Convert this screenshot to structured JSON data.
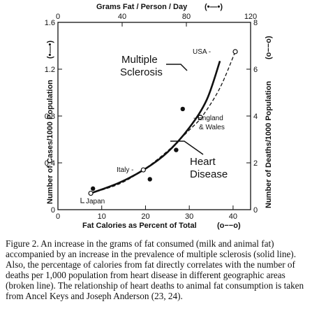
{
  "chart_data": {
    "type": "scatter",
    "title": "",
    "top_axis": {
      "label": "Grams Fat / Person / Day",
      "ticks": [
        0,
        40,
        80,
        120
      ],
      "range": [
        0,
        120
      ]
    },
    "xlabel": "Fat Calories as Percent of Total",
    "x_ticks": [
      0,
      10,
      20,
      30,
      40
    ],
    "xlim": [
      0,
      44
    ],
    "ylabel": "Number of Cases/1000 Population",
    "y_ticks": [
      "0",
      "0.4",
      "0.8",
      "1.2",
      "1.6"
    ],
    "ylim": [
      0,
      1.6
    ],
    "y2label": "Number of Deaths/1000 Population",
    "y2_ticks": [
      0,
      2,
      4,
      6,
      8
    ],
    "y2lim": [
      0,
      8
    ],
    "series": [
      {
        "name": "Multiple Sclerosis",
        "line": "solid",
        "marker": "filled",
        "points": [
          [
            8,
            0.18
          ],
          [
            21,
            0.26
          ],
          [
            27,
            0.51
          ],
          [
            28.5,
            0.86
          ]
        ],
        "fit": [
          [
            7.5,
            0.14
          ],
          [
            14,
            0.23
          ],
          [
            20,
            0.35
          ],
          [
            25,
            0.49
          ],
          [
            30,
            0.7
          ],
          [
            34,
            0.94
          ],
          [
            37,
            1.27
          ]
        ]
      },
      {
        "name": "Heart Disease",
        "line": "dashed",
        "marker": "open",
        "points": [
          [
            7.5,
            0.7
          ],
          [
            19.5,
            1.7
          ],
          [
            32.5,
            3.95
          ],
          [
            40.5,
            6.75
          ]
        ],
        "fit": [
          [
            7.5,
            0.7
          ],
          [
            14,
            1.1
          ],
          [
            19.5,
            1.7
          ],
          [
            25,
            2.5
          ],
          [
            30,
            3.4
          ],
          [
            33,
            4.0
          ],
          [
            37,
            5.2
          ],
          [
            40.5,
            6.75
          ]
        ]
      }
    ],
    "annotations": {
      "japan": "Japan",
      "italy": "Italy -",
      "england": "- England",
      "wales": "& Wales",
      "usa": "USA -",
      "ms_line1": "Multiple",
      "ms_line2": "Sclerosis",
      "hd_line1": "Heart",
      "hd_line2": "Disease"
    },
    "legend_glyph": "(•—•)",
    "legend_glyph_open": "(o−−o)"
  },
  "caption": "Figure 2. An increase in the grams of fat consumed (milk and animal fat) accompanied by an increase in the prevalence of multiple sclerosis (solid line). Also, the percentage of calories from fat directly correlates with the number of deaths per 1,000 population from heart disease in different geographic areas (broken line). The relationship of heart deaths to animal fat consumption is taken from Ancel Keys and Joseph Anderson (23, 24).",
  "colors": {
    "ink": "#111111",
    "background": "#ffffff"
  }
}
